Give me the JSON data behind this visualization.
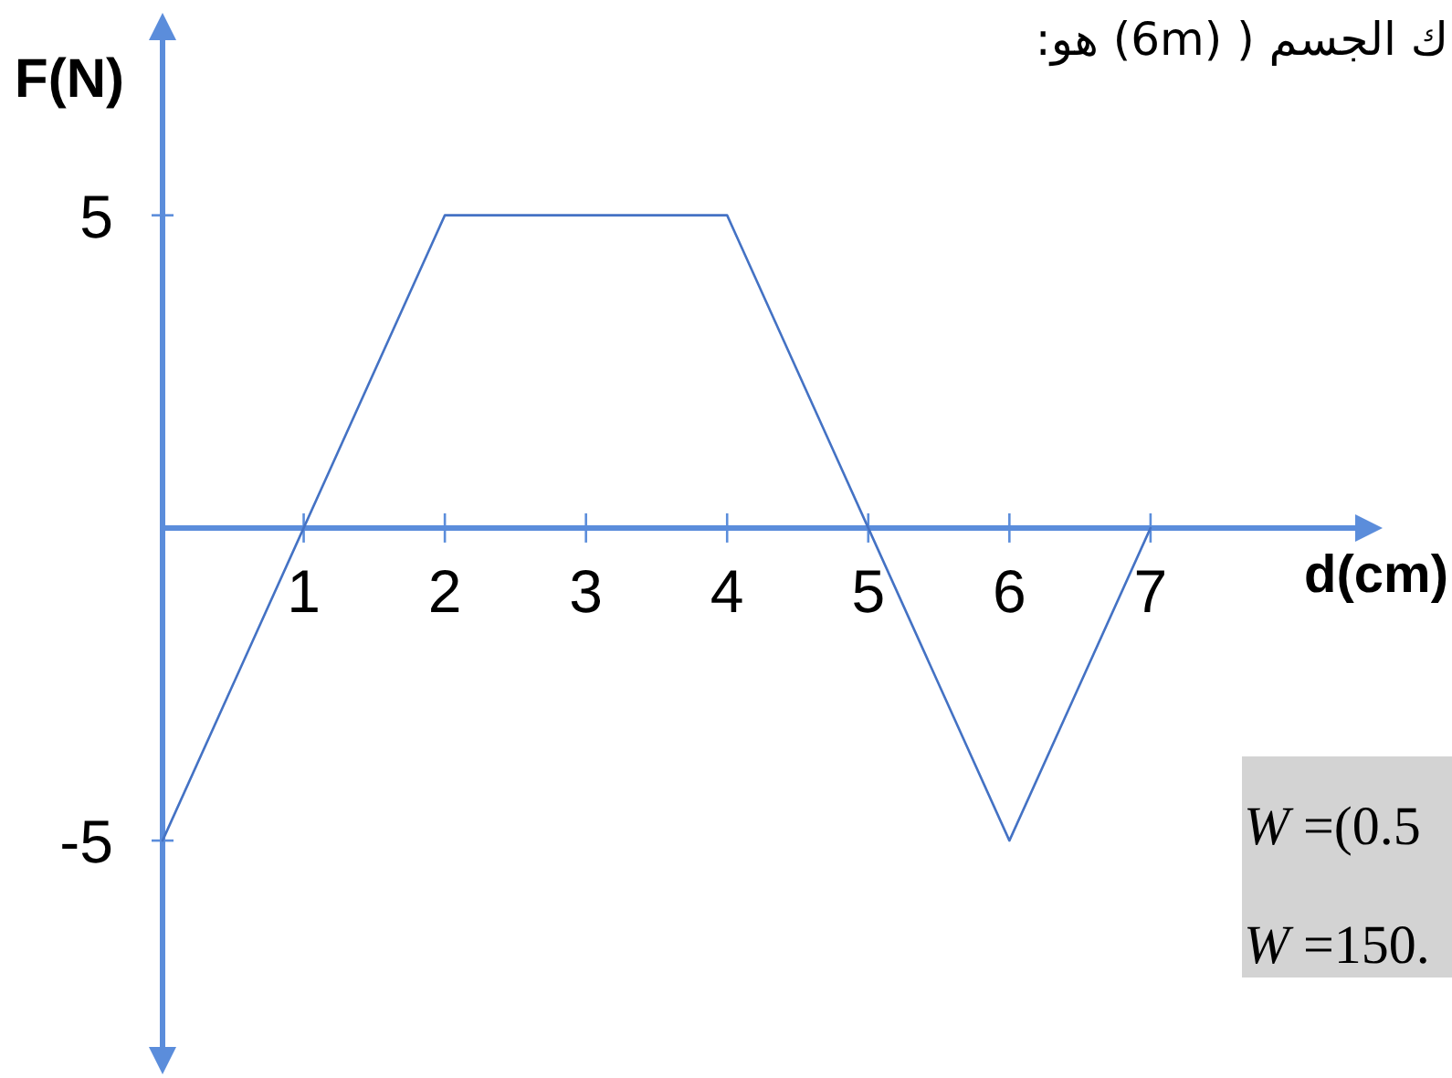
{
  "chart_data": {
    "type": "line",
    "xlabel": "d(cm)",
    "ylabel": "F(N)",
    "x": [
      0,
      1,
      2,
      4,
      5,
      6,
      7
    ],
    "values": [
      -5,
      0,
      5,
      5,
      0,
      -5,
      0
    ],
    "color": "#4472c4",
    "xlim": [
      0,
      8.45
    ],
    "ylim": [
      -8.3,
      7.8
    ],
    "xticks": [
      1,
      2,
      3,
      4,
      5,
      6,
      7
    ],
    "yticks": [
      -5,
      5
    ],
    "annotations": [
      "ك الجسم ( (6m) هو:",
      "*W* =(0.5",
      "*W* =150."
    ]
  }
}
